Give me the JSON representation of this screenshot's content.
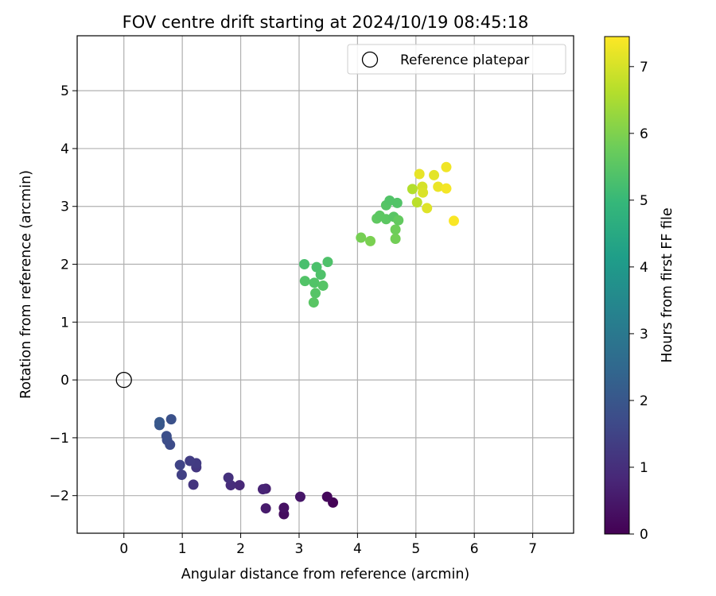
{
  "chart_data": {
    "type": "scatter",
    "title": "FOV centre drift starting at 2024/10/19 08:45:18",
    "xlabel": "Angular distance from reference (arcmin)",
    "ylabel": "Rotation from reference (arcmin)",
    "xlim": [
      -0.8,
      7.7
    ],
    "ylim": [
      -2.65,
      5.95
    ],
    "xticks": [
      0,
      1,
      2,
      3,
      4,
      5,
      6,
      7
    ],
    "yticks": [
      -2,
      -1,
      0,
      1,
      2,
      3,
      4,
      5
    ],
    "grid": true,
    "legend": {
      "position": "top-right",
      "entries": [
        {
          "label": "Reference platepar",
          "marker": "open-circle"
        }
      ]
    },
    "reference_point": {
      "x": 0,
      "y": 0,
      "label": "Reference platepar"
    },
    "colorbar": {
      "label": "Hours from first FF file",
      "colormap": "viridis",
      "range": [
        0,
        7.45
      ],
      "ticks": [
        0,
        1,
        2,
        3,
        4,
        5,
        6,
        7
      ]
    },
    "points": [
      {
        "x": 3.58,
        "y": -2.12,
        "c": 0.05
      },
      {
        "x": 3.48,
        "y": -2.02,
        "c": 0.15
      },
      {
        "x": 2.74,
        "y": -2.32,
        "c": 0.25
      },
      {
        "x": 2.74,
        "y": -2.21,
        "c": 0.35
      },
      {
        "x": 3.02,
        "y": -2.02,
        "c": 0.45
      },
      {
        "x": 2.43,
        "y": -2.22,
        "c": 0.55
      },
      {
        "x": 2.43,
        "y": -1.88,
        "c": 0.65
      },
      {
        "x": 2.38,
        "y": -1.89,
        "c": 0.75
      },
      {
        "x": 1.98,
        "y": -1.82,
        "c": 0.85
      },
      {
        "x": 1.83,
        "y": -1.82,
        "c": 0.95
      },
      {
        "x": 1.79,
        "y": -1.69,
        "c": 1.05
      },
      {
        "x": 1.19,
        "y": -1.81,
        "c": 1.15
      },
      {
        "x": 1.24,
        "y": -1.51,
        "c": 1.2
      },
      {
        "x": 1.24,
        "y": -1.44,
        "c": 1.3
      },
      {
        "x": 1.13,
        "y": -1.4,
        "c": 1.35
      },
      {
        "x": 0.99,
        "y": -1.64,
        "c": 1.4
      },
      {
        "x": 0.96,
        "y": -1.47,
        "c": 1.5
      },
      {
        "x": 0.79,
        "y": -1.12,
        "c": 1.7
      },
      {
        "x": 0.74,
        "y": -1.04,
        "c": 1.75
      },
      {
        "x": 0.73,
        "y": -0.97,
        "c": 1.8
      },
      {
        "x": 0.81,
        "y": -0.68,
        "c": 1.85
      },
      {
        "x": 0.61,
        "y": -0.78,
        "c": 2.0
      },
      {
        "x": 0.61,
        "y": -0.73,
        "c": 2.05
      },
      {
        "x": 3.09,
        "y": 2.0,
        "c": 5.25
      },
      {
        "x": 3.3,
        "y": 1.95,
        "c": 5.3
      },
      {
        "x": 3.49,
        "y": 2.04,
        "c": 5.35
      },
      {
        "x": 3.37,
        "y": 1.82,
        "c": 5.35
      },
      {
        "x": 3.1,
        "y": 1.71,
        "c": 5.4
      },
      {
        "x": 3.26,
        "y": 1.68,
        "c": 5.4
      },
      {
        "x": 3.41,
        "y": 1.63,
        "c": 5.45
      },
      {
        "x": 3.28,
        "y": 1.5,
        "c": 5.45
      },
      {
        "x": 3.25,
        "y": 1.34,
        "c": 5.5
      },
      {
        "x": 4.06,
        "y": 2.46,
        "c": 5.9
      },
      {
        "x": 4.22,
        "y": 2.4,
        "c": 5.95
      },
      {
        "x": 4.65,
        "y": 2.44,
        "c": 5.85
      },
      {
        "x": 4.65,
        "y": 2.6,
        "c": 5.8
      },
      {
        "x": 4.33,
        "y": 2.79,
        "c": 5.6
      },
      {
        "x": 4.38,
        "y": 2.84,
        "c": 5.55
      },
      {
        "x": 4.49,
        "y": 2.78,
        "c": 5.55
      },
      {
        "x": 4.62,
        "y": 2.82,
        "c": 5.5
      },
      {
        "x": 4.7,
        "y": 2.76,
        "c": 5.65
      },
      {
        "x": 4.49,
        "y": 3.02,
        "c": 5.45
      },
      {
        "x": 4.55,
        "y": 3.1,
        "c": 5.4
      },
      {
        "x": 4.68,
        "y": 3.06,
        "c": 5.4
      },
      {
        "x": 4.94,
        "y": 3.3,
        "c": 6.6
      },
      {
        "x": 5.02,
        "y": 3.07,
        "c": 6.7
      },
      {
        "x": 5.06,
        "y": 3.56,
        "c": 7.2
      },
      {
        "x": 5.11,
        "y": 3.34,
        "c": 7.0
      },
      {
        "x": 5.12,
        "y": 3.24,
        "c": 7.05
      },
      {
        "x": 5.19,
        "y": 2.97,
        "c": 7.1
      },
      {
        "x": 5.31,
        "y": 3.54,
        "c": 7.15
      },
      {
        "x": 5.38,
        "y": 3.34,
        "c": 7.25
      },
      {
        "x": 5.52,
        "y": 3.68,
        "c": 7.3
      },
      {
        "x": 5.52,
        "y": 3.31,
        "c": 7.35
      },
      {
        "x": 5.65,
        "y": 2.75,
        "c": 7.4
      }
    ]
  }
}
